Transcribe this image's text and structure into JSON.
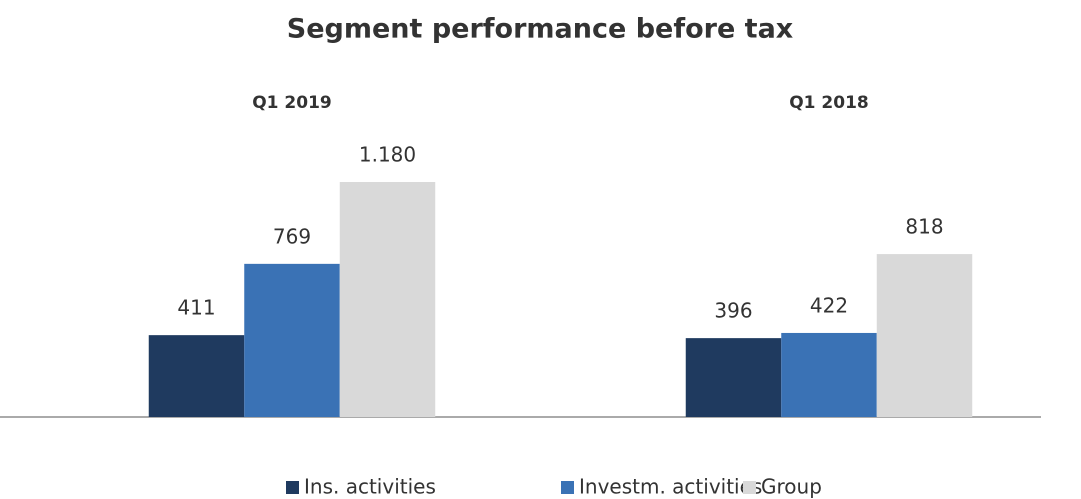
{
  "chart_data": {
    "type": "bar",
    "title": "Segment performance before tax",
    "categories": [
      "Q1 2019",
      "Q1 2018"
    ],
    "series": [
      {
        "name": "Ins. activities",
        "color": "#1f3a5f",
        "values": [
          411,
          396
        ]
      },
      {
        "name": "Investm. activities",
        "color": "#3a72b5",
        "values": [
          769,
          422
        ]
      },
      {
        "name": "Group",
        "color": "#d9d9d9",
        "values": [
          1180,
          818
        ],
        "value_labels": [
          "1.180",
          "818"
        ]
      }
    ],
    "legend": "bottom"
  }
}
